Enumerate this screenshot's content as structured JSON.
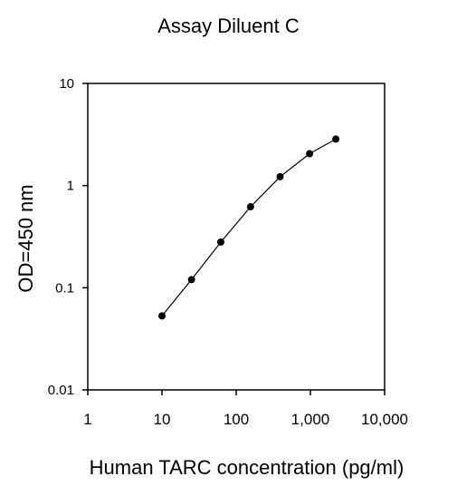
{
  "chart_data": {
    "type": "line",
    "title": "Assay Diluent C",
    "xlabel": "Human TARC concentration (pg/ml)",
    "ylabel": "OD=450 nm",
    "xscale": "log",
    "yscale": "log",
    "xlim": [
      1,
      10000
    ],
    "ylim": [
      0.01,
      10
    ],
    "xticks": [
      {
        "value": 1,
        "label": "1"
      },
      {
        "value": 10,
        "label": "10"
      },
      {
        "value": 100,
        "label": "100"
      },
      {
        "value": 1000,
        "label": "1,000"
      },
      {
        "value": 10000,
        "label": "10,000"
      }
    ],
    "yticks": [
      {
        "value": 0.01,
        "label": "0.01"
      },
      {
        "value": 0.1,
        "label": "0.1"
      },
      {
        "value": 1,
        "label": "1"
      },
      {
        "value": 10,
        "label": "10"
      }
    ],
    "grid": false,
    "series": [
      {
        "x": [
          10,
          25,
          62,
          156,
          390,
          975,
          2200
        ],
        "y": [
          0.053,
          0.12,
          0.28,
          0.62,
          1.22,
          2.05,
          2.85
        ]
      }
    ]
  }
}
